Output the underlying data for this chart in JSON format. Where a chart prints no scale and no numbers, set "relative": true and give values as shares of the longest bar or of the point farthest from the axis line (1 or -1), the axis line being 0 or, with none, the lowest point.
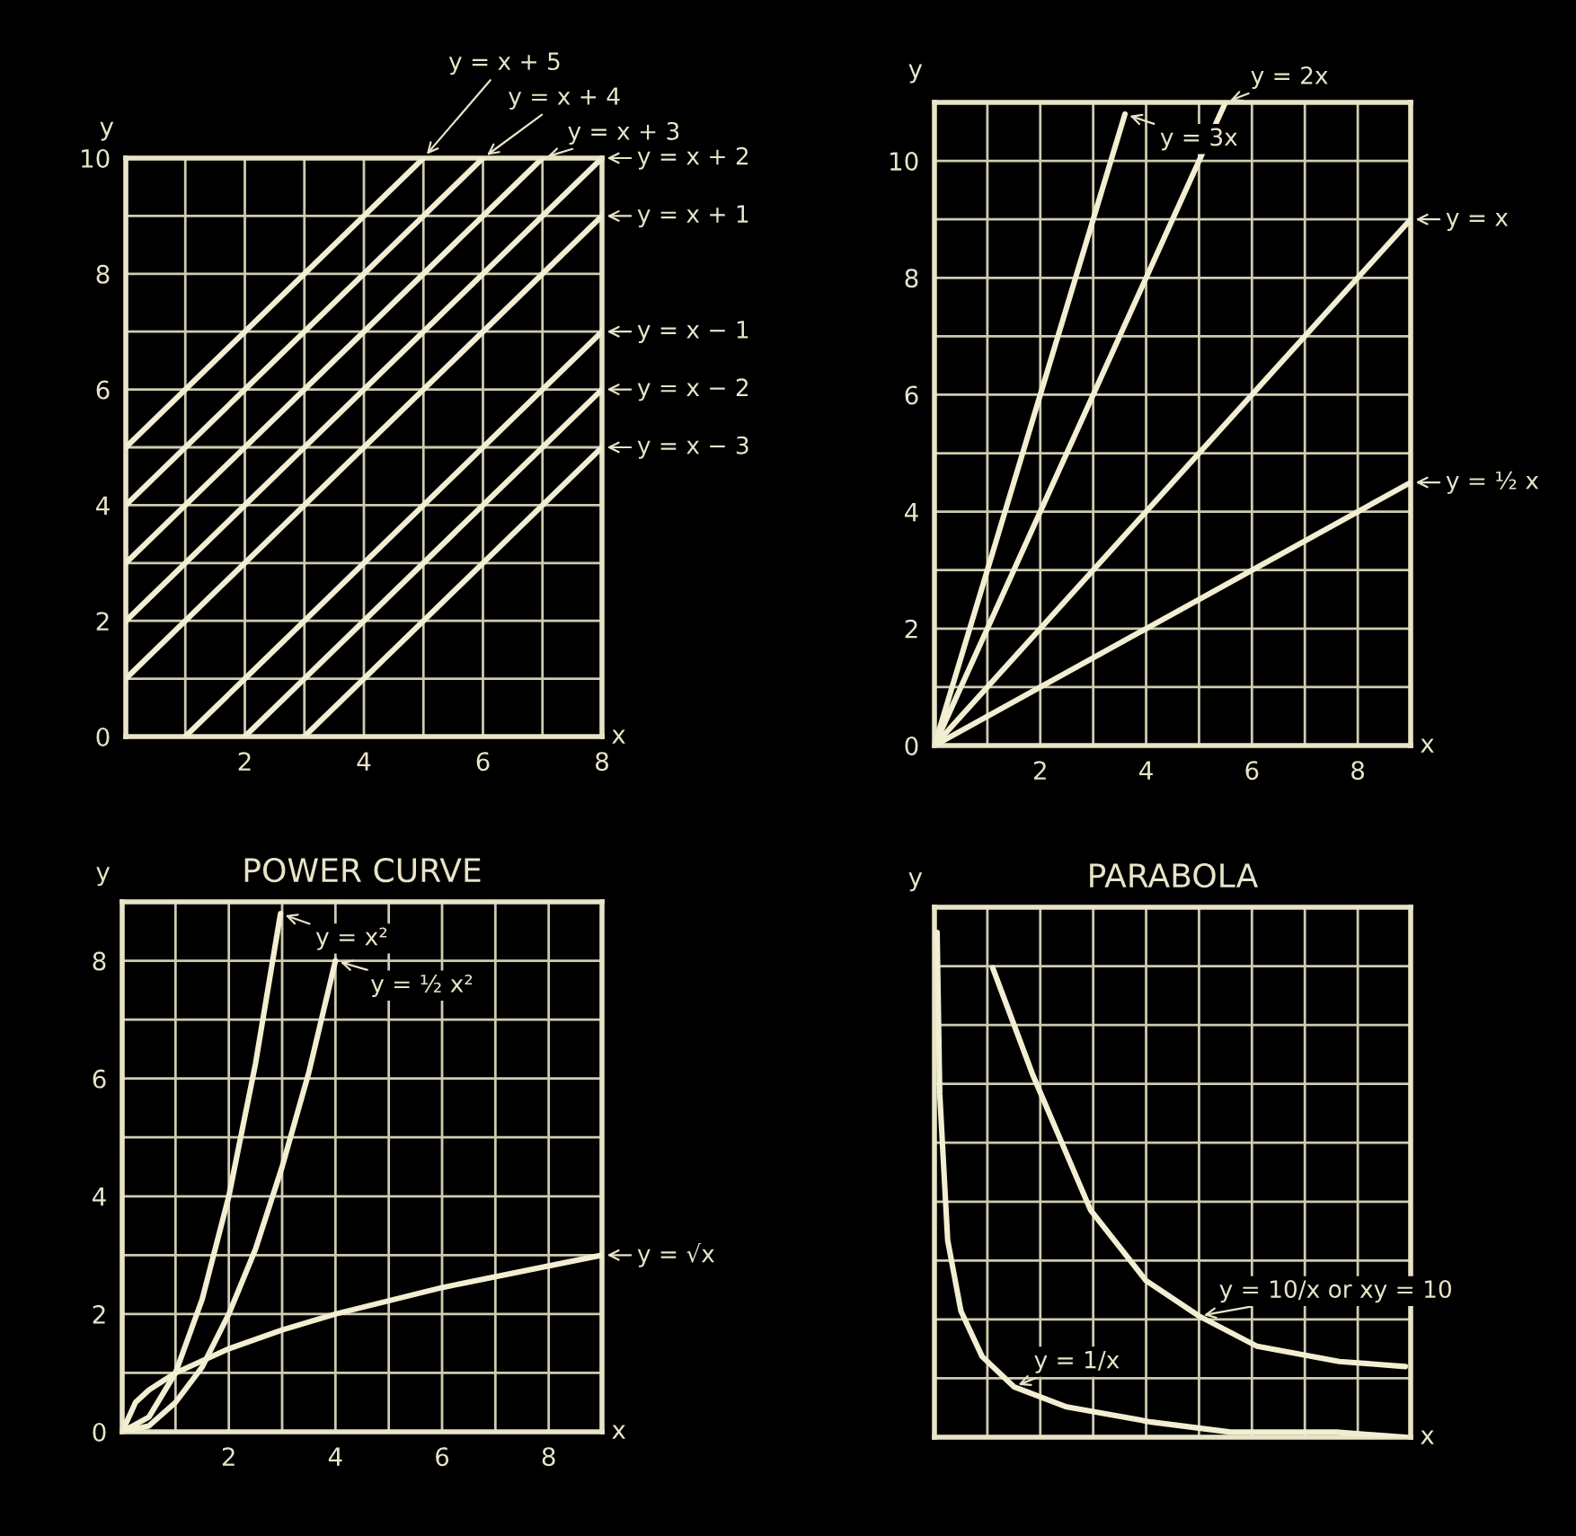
{
  "chart_data": [
    {
      "type": "line",
      "xlabel": "x",
      "ylabel": "y",
      "xlim": [
        0,
        8
      ],
      "ylim": [
        0,
        10
      ],
      "grid": true,
      "legend": "right",
      "xticks": [
        {
          "value": 0,
          "label": null
        },
        {
          "value": 1,
          "label": null
        },
        2,
        {
          "value": 3,
          "label": null
        },
        4,
        {
          "value": 5,
          "label": null
        },
        6,
        {
          "value": 7,
          "label": null
        },
        8
      ],
      "yticks": [
        0,
        {
          "value": 1,
          "label": null
        },
        2,
        {
          "value": 3,
          "label": null
        },
        4,
        {
          "value": 5,
          "label": null
        },
        6,
        {
          "value": 7,
          "label": null
        },
        8,
        {
          "value": 9,
          "label": null
        },
        10
      ],
      "series": [
        {
          "name": "y = x + 5",
          "color": "#f2eed2",
          "x": [
            0,
            5
          ],
          "values": [
            5,
            10
          ]
        },
        {
          "name": "y = x + 4",
          "color": "#f2eed2",
          "x": [
            0,
            6
          ],
          "values": [
            4,
            10
          ]
        },
        {
          "name": "y = x + 3",
          "color": "#f2eed2",
          "x": [
            0,
            7
          ],
          "values": [
            3,
            10
          ]
        },
        {
          "name": "y = x + 2",
          "color": "#f2eed2",
          "x": [
            0,
            8
          ],
          "values": [
            2,
            10
          ]
        },
        {
          "name": "y = x + 1",
          "color": "#f2eed2",
          "x": [
            0,
            8
          ],
          "values": [
            1,
            9
          ]
        },
        {
          "name": "y = x − 1",
          "color": "#f2eed2",
          "x": [
            1,
            8
          ],
          "values": [
            0,
            7
          ]
        },
        {
          "name": "y = x − 2",
          "color": "#f2eed2",
          "x": [
            2,
            8
          ],
          "values": [
            0,
            6
          ]
        },
        {
          "name": "y = x − 3",
          "color": "#f2eed2",
          "x": [
            3,
            8
          ],
          "values": [
            0,
            5
          ]
        }
      ]
    },
    {
      "type": "line",
      "xlabel": "x",
      "ylabel": "y",
      "xlim": [
        0,
        9
      ],
      "ylim": [
        0,
        11
      ],
      "grid": true,
      "legend": "right",
      "xticks": [
        {
          "value": 0,
          "label": null
        },
        {
          "value": 1,
          "label": null
        },
        2,
        {
          "value": 3,
          "label": null
        },
        4,
        {
          "value": 5,
          "label": null
        },
        6,
        {
          "value": 7,
          "label": null
        },
        8,
        {
          "value": 9,
          "label": null
        }
      ],
      "yticks": [
        0,
        {
          "value": 1,
          "label": null
        },
        2,
        {
          "value": 3,
          "label": null
        },
        4,
        {
          "value": 5,
          "label": null
        },
        6,
        {
          "value": 7,
          "label": null
        },
        8,
        {
          "value": 9,
          "label": null
        },
        10,
        {
          "value": 11,
          "label": null
        }
      ],
      "series": [
        {
          "name": "y = 3x",
          "color": "#f2eed2",
          "x": [
            0,
            3.6
          ],
          "values": [
            0,
            10.8
          ]
        },
        {
          "name": "y = 2x",
          "color": "#f2eed2",
          "x": [
            0,
            5.5
          ],
          "values": [
            0,
            11
          ]
        },
        {
          "name": "y = x",
          "color": "#f2eed2",
          "x": [
            0,
            9
          ],
          "values": [
            0,
            9
          ]
        },
        {
          "name": "y = ½ x",
          "color": "#f2eed2",
          "x": [
            0,
            9
          ],
          "values": [
            0,
            4.5
          ]
        }
      ]
    },
    {
      "type": "line",
      "title": "POWER CURVE",
      "xlabel": "x",
      "ylabel": "y",
      "xlim": [
        0,
        9
      ],
      "ylim": [
        0,
        9
      ],
      "grid": true,
      "legend": "right",
      "xticks": [
        {
          "value": 0,
          "label": null
        },
        {
          "value": 1,
          "label": null
        },
        2,
        {
          "value": 3,
          "label": null
        },
        4,
        {
          "value": 5,
          "label": null
        },
        6,
        {
          "value": 7,
          "label": null
        },
        8,
        {
          "value": 9,
          "label": null
        }
      ],
      "yticks": [
        0,
        {
          "value": 1,
          "label": null
        },
        2,
        {
          "value": 3,
          "label": null
        },
        4,
        {
          "value": 5,
          "label": null
        },
        6,
        {
          "value": 7,
          "label": null
        },
        8,
        {
          "value": 9,
          "label": null
        }
      ],
      "series": [
        {
          "name": "y = x²",
          "color": "#f2eed2",
          "x": [
            0,
            0.5,
            1,
            1.5,
            2,
            2.5,
            2.97
          ],
          "values": [
            0,
            0.25,
            1,
            2.25,
            4,
            6.25,
            8.8
          ]
        },
        {
          "name": "y = ½ x²",
          "color": "#f2eed2",
          "x": [
            0,
            0.5,
            1,
            1.5,
            2,
            2.5,
            3,
            3.5,
            4
          ],
          "values": [
            0,
            0.1,
            0.5,
            1.1,
            2,
            3.1,
            4.5,
            6.1,
            8
          ]
        },
        {
          "name": "y = √x",
          "color": "#f2eed2",
          "x": [
            0,
            0.25,
            0.5,
            1,
            2,
            3,
            4,
            6,
            9
          ],
          "values": [
            0,
            0.5,
            0.71,
            1,
            1.41,
            1.73,
            2,
            2.45,
            3
          ]
        }
      ]
    },
    {
      "type": "line",
      "title": "PARABOLA",
      "xlabel": "x",
      "ylabel": "y",
      "relative": true,
      "xlim": [
        0,
        9
      ],
      "tick_labels": false,
      "grid": true,
      "legend": "bottom right",
      "series": [
        {
          "name": "y = 1/x",
          "color": "#f2eed2",
          "x": [
            0.05,
            0.1,
            0.25,
            0.5,
            0.9,
            1.5,
            2.5,
            4.1,
            5.6,
            7.6,
            8.9
          ],
          "values": [
            1.0,
            0.68,
            0.39,
            0.25,
            0.16,
            0.1,
            0.06,
            0.03,
            0.01,
            0.01,
            0.0
          ]
        },
        {
          "name": "y = 10/x or xy = 10",
          "color": "#f2eed2",
          "x": [
            1.1,
            1.85,
            2.95,
            4.0,
            5.0,
            6.1,
            7.65,
            8.9
          ],
          "values": [
            0.93,
            0.72,
            0.45,
            0.31,
            0.24,
            0.18,
            0.15,
            0.14
          ]
        }
      ]
    }
  ]
}
